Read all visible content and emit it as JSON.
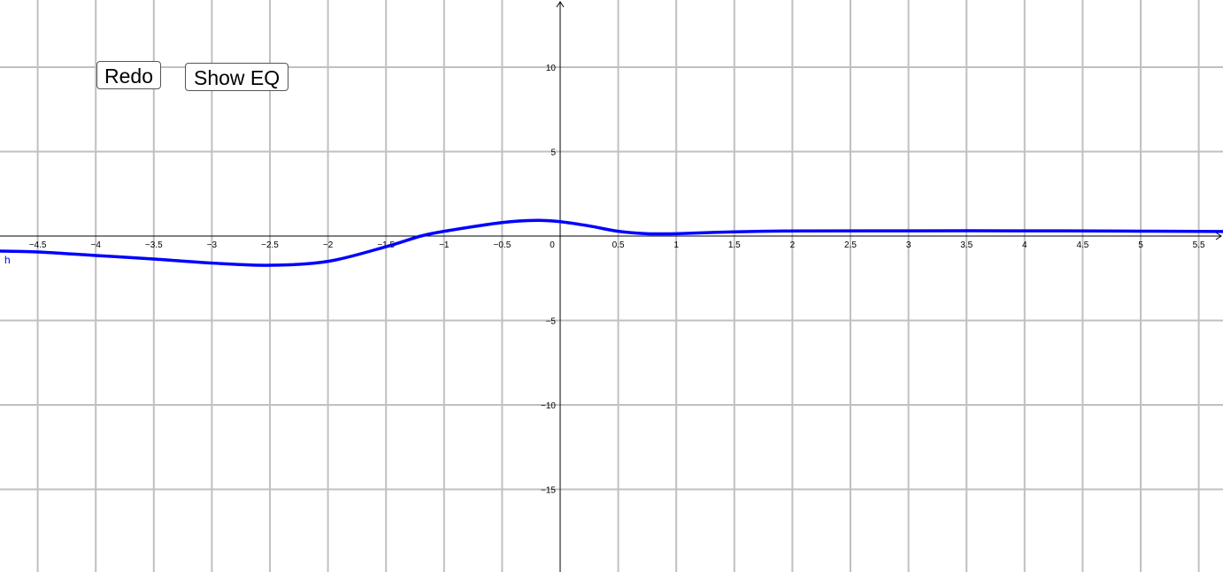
{
  "buttons": {
    "redo": "Redo",
    "show_eq": "Show EQ"
  },
  "chart_data": {
    "type": "line",
    "title": "",
    "xlabel": "",
    "ylabel": "",
    "xlim": [
      -4.82,
      5.72
    ],
    "ylim": [
      -19.6,
      14
    ],
    "grid": true,
    "x_ticks": [
      "-4.5",
      "-4",
      "-3.5",
      "-3",
      "-2.5",
      "-2",
      "-1.5",
      "-1",
      "-0.5",
      "0",
      "0.5",
      "1",
      "1.5",
      "2",
      "2.5",
      "3",
      "3.5",
      "4",
      "4.5",
      "5",
      "5.5"
    ],
    "y_ticks": [
      "10",
      "5",
      "-5",
      "-10",
      "-15"
    ],
    "series": [
      {
        "name": "h",
        "color": "#0000ff",
        "x": [
          -4.82,
          -4.5,
          -4,
          -3.5,
          -3,
          -2.5,
          -2,
          -1.5,
          -1.2,
          -1,
          -0.5,
          -0.2,
          0,
          0.25,
          0.5,
          0.75,
          1,
          1.5,
          2,
          3,
          4,
          5,
          5.72
        ],
        "y": [
          -0.89,
          -0.94,
          -1.15,
          -1.36,
          -1.6,
          -1.73,
          -1.5,
          -0.63,
          0,
          0.28,
          0.8,
          0.93,
          0.85,
          0.6,
          0.28,
          0.14,
          0.14,
          0.25,
          0.3,
          0.31,
          0.31,
          0.29,
          0.27
        ]
      }
    ]
  }
}
